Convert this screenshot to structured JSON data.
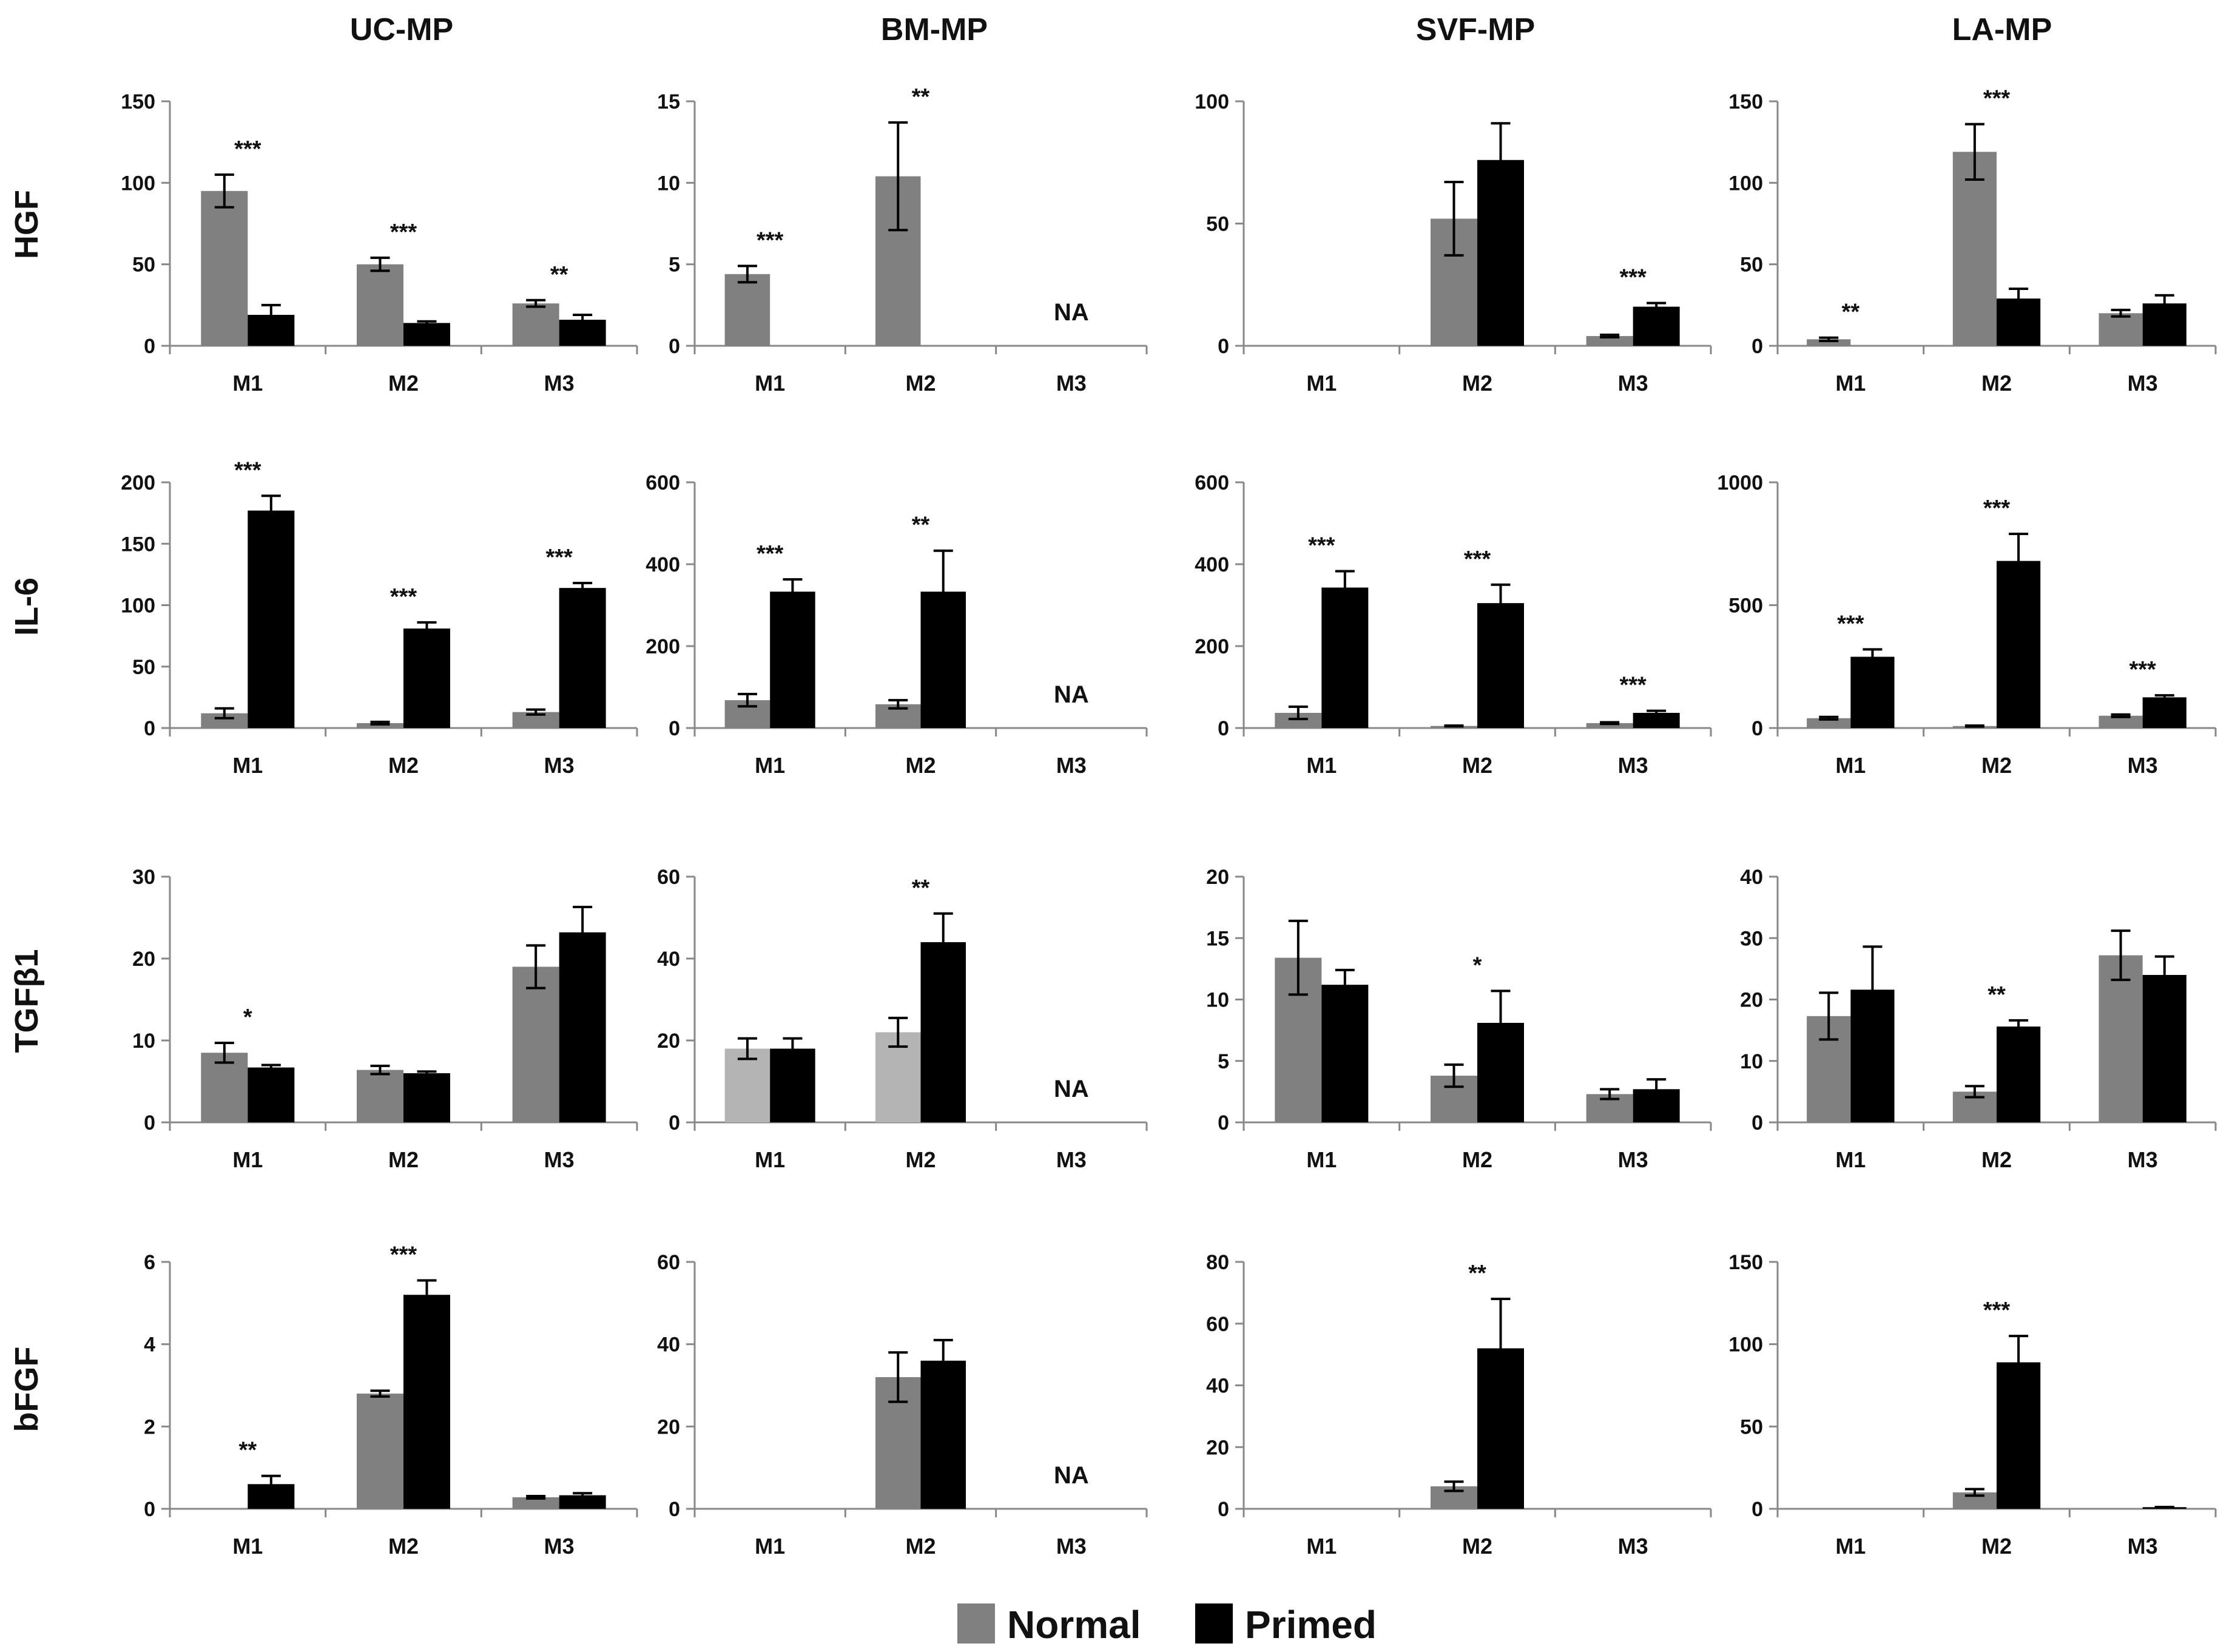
{
  "figure": {
    "columns": [
      "UC-MP",
      "BM-MP",
      "SVF-MP",
      "LA-MP"
    ],
    "rows": [
      "HGF",
      "IL-6",
      "TGFβ1",
      "bFGF"
    ],
    "legend": [
      {
        "label": "Normal",
        "color": "#808080"
      },
      {
        "label": "Primed",
        "color": "#000000"
      }
    ]
  },
  "chart_data": [
    {
      "type": "bar",
      "row": "HGF",
      "column": "UC-MP",
      "categories": [
        "M1",
        "M2",
        "M3"
      ],
      "ylim": [
        0,
        150
      ],
      "yticks": [
        0,
        50,
        100,
        150
      ],
      "series": [
        {
          "name": "Normal",
          "values": [
            95,
            50,
            26
          ],
          "errors": [
            10,
            4,
            2
          ]
        },
        {
          "name": "Primed",
          "values": [
            19,
            14,
            16
          ],
          "errors": [
            6,
            1,
            3
          ]
        }
      ],
      "significance": [
        "***",
        "***",
        "**"
      ],
      "na": null
    },
    {
      "type": "bar",
      "row": "HGF",
      "column": "BM-MP",
      "categories": [
        "M1",
        "M2",
        "M3"
      ],
      "ylim": [
        0,
        15
      ],
      "yticks": [
        0,
        5,
        10,
        15
      ],
      "series": [
        {
          "name": "Normal",
          "values": [
            4.4,
            10.4,
            null
          ],
          "errors": [
            0.5,
            3.3,
            null
          ]
        },
        {
          "name": "Primed",
          "values": [
            null,
            null,
            null
          ],
          "errors": [
            null,
            null,
            null
          ]
        }
      ],
      "significance": [
        "***",
        "**",
        ""
      ],
      "na": "NA"
    },
    {
      "type": "bar",
      "row": "HGF",
      "column": "SVF-MP",
      "categories": [
        "M1",
        "M2",
        "M3"
      ],
      "ylim": [
        0,
        100
      ],
      "yticks": [
        0,
        50,
        100
      ],
      "series": [
        {
          "name": "Normal",
          "values": [
            null,
            52,
            4
          ],
          "errors": [
            null,
            15,
            0.5
          ]
        },
        {
          "name": "Primed",
          "values": [
            null,
            76,
            16
          ],
          "errors": [
            null,
            15,
            1.5
          ]
        }
      ],
      "significance": [
        "",
        "",
        "***"
      ],
      "na": null
    },
    {
      "type": "bar",
      "row": "HGF",
      "column": "LA-MP",
      "categories": [
        "M1",
        "M2",
        "M3"
      ],
      "ylim": [
        0,
        150
      ],
      "yticks": [
        0,
        50,
        100,
        150
      ],
      "series": [
        {
          "name": "Normal",
          "values": [
            4,
            119,
            20
          ],
          "errors": [
            1,
            17,
            2
          ]
        },
        {
          "name": "Primed",
          "values": [
            null,
            29,
            26
          ],
          "errors": [
            null,
            6,
            5
          ]
        }
      ],
      "significance": [
        "**",
        "***",
        ""
      ],
      "na": null
    },
    {
      "type": "bar",
      "row": "IL-6",
      "column": "UC-MP",
      "categories": [
        "M1",
        "M2",
        "M3"
      ],
      "ylim": [
        0,
        200
      ],
      "yticks": [
        0,
        50,
        100,
        150,
        200
      ],
      "series": [
        {
          "name": "Normal",
          "values": [
            12,
            4,
            13
          ],
          "errors": [
            4,
            1,
            2
          ]
        },
        {
          "name": "Primed",
          "values": [
            177,
            81,
            114
          ],
          "errors": [
            12,
            5,
            4
          ]
        }
      ],
      "significance": [
        "***",
        "***",
        "***"
      ],
      "na": null
    },
    {
      "type": "bar",
      "row": "IL-6",
      "column": "BM-MP",
      "categories": [
        "M1",
        "M2",
        "M3"
      ],
      "ylim": [
        0,
        600
      ],
      "yticks": [
        0,
        200,
        400,
        600
      ],
      "series": [
        {
          "name": "Normal",
          "values": [
            68,
            58,
            null
          ],
          "errors": [
            15,
            10,
            null
          ]
        },
        {
          "name": "Primed",
          "values": [
            333,
            333,
            null
          ],
          "errors": [
            30,
            100,
            null
          ]
        }
      ],
      "significance": [
        "***",
        "**",
        ""
      ],
      "na": "NA"
    },
    {
      "type": "bar",
      "row": "IL-6",
      "column": "SVF-MP",
      "categories": [
        "M1",
        "M2",
        "M3"
      ],
      "ylim": [
        0,
        600
      ],
      "yticks": [
        0,
        200,
        400,
        600
      ],
      "series": [
        {
          "name": "Normal",
          "values": [
            37,
            5,
            12
          ],
          "errors": [
            15,
            1,
            2
          ]
        },
        {
          "name": "Primed",
          "values": [
            343,
            305,
            37
          ],
          "errors": [
            40,
            45,
            5
          ]
        }
      ],
      "significance": [
        "***",
        "***",
        "***"
      ],
      "na": null
    },
    {
      "type": "bar",
      "row": "IL-6",
      "column": "LA-MP",
      "categories": [
        "M1",
        "M2",
        "M3"
      ],
      "ylim": [
        0,
        1000
      ],
      "yticks": [
        0,
        500,
        1000
      ],
      "series": [
        {
          "name": "Normal",
          "values": [
            40,
            8,
            50
          ],
          "errors": [
            5,
            2,
            5
          ]
        },
        {
          "name": "Primed",
          "values": [
            290,
            680,
            125
          ],
          "errors": [
            30,
            110,
            8
          ]
        }
      ],
      "significance": [
        "***",
        "***",
        "***"
      ],
      "na": null
    },
    {
      "type": "bar",
      "row": "TGFβ1",
      "column": "UC-MP",
      "categories": [
        "M1",
        "M2",
        "M3"
      ],
      "ylim": [
        0,
        30
      ],
      "yticks": [
        0,
        10,
        20,
        30
      ],
      "series": [
        {
          "name": "Normal",
          "values": [
            8.5,
            6.4,
            19
          ],
          "errors": [
            1.2,
            0.5,
            2.6
          ]
        },
        {
          "name": "Primed",
          "values": [
            6.7,
            6,
            23.2
          ],
          "errors": [
            0.3,
            0.2,
            3.1
          ]
        }
      ],
      "significance": [
        "*",
        "",
        ""
      ],
      "na": null
    },
    {
      "type": "bar",
      "row": "TGFβ1",
      "column": "BM-MP",
      "categories": [
        "M1",
        "M2",
        "M3"
      ],
      "ylim": [
        0,
        60
      ],
      "yticks": [
        0,
        20,
        40,
        60
      ],
      "series": [
        {
          "name": "Normal",
          "values": [
            18,
            22,
            null
          ],
          "errors": [
            2.5,
            3.5,
            null
          ]
        },
        {
          "name": "Primed",
          "values": [
            18,
            44,
            null
          ],
          "errors": [
            2.5,
            7,
            null
          ]
        }
      ],
      "significance": [
        "",
        "**",
        ""
      ],
      "na": "NA"
    },
    {
      "type": "bar",
      "row": "TGFβ1",
      "column": "SVF-MP",
      "categories": [
        "M1",
        "M2",
        "M3"
      ],
      "ylim": [
        0,
        20
      ],
      "yticks": [
        0,
        5,
        10,
        15,
        20
      ],
      "series": [
        {
          "name": "Normal",
          "values": [
            13.4,
            3.8,
            2.3
          ],
          "errors": [
            3,
            0.9,
            0.4
          ]
        },
        {
          "name": "Primed",
          "values": [
            11.2,
            8.1,
            2.7
          ],
          "errors": [
            1.2,
            2.6,
            0.8
          ]
        }
      ],
      "significance": [
        "",
        "*",
        ""
      ],
      "na": null
    },
    {
      "type": "bar",
      "row": "TGFβ1",
      "column": "LA-MP",
      "categories": [
        "M1",
        "M2",
        "M3"
      ],
      "ylim": [
        0,
        40
      ],
      "yticks": [
        0,
        10,
        20,
        30,
        40
      ],
      "series": [
        {
          "name": "Normal",
          "values": [
            17.3,
            5,
            27.2
          ],
          "errors": [
            3.8,
            0.9,
            4
          ]
        },
        {
          "name": "Primed",
          "values": [
            21.6,
            15.6,
            24
          ],
          "errors": [
            7,
            1,
            3
          ]
        }
      ],
      "significance": [
        "",
        "**",
        ""
      ],
      "na": null
    },
    {
      "type": "bar",
      "row": "bFGF",
      "column": "UC-MP",
      "categories": [
        "M1",
        "M2",
        "M3"
      ],
      "ylim": [
        0,
        6
      ],
      "yticks": [
        0,
        2,
        4,
        6
      ],
      "series": [
        {
          "name": "Normal",
          "values": [
            null,
            2.8,
            0.28
          ],
          "errors": [
            null,
            0.07,
            0.03
          ]
        },
        {
          "name": "Primed",
          "values": [
            0.6,
            5.2,
            0.33
          ],
          "errors": [
            0.2,
            0.35,
            0.05
          ]
        }
      ],
      "significance": [
        "**",
        "***",
        ""
      ],
      "na": null
    },
    {
      "type": "bar",
      "row": "bFGF",
      "column": "BM-MP",
      "categories": [
        "M1",
        "M2",
        "M3"
      ],
      "ylim": [
        0,
        60
      ],
      "yticks": [
        0,
        20,
        40,
        60
      ],
      "series": [
        {
          "name": "Normal",
          "values": [
            null,
            32,
            null
          ],
          "errors": [
            null,
            6,
            null
          ]
        },
        {
          "name": "Primed",
          "values": [
            null,
            36,
            null
          ],
          "errors": [
            null,
            5,
            null
          ]
        }
      ],
      "significance": [
        "",
        "",
        ""
      ],
      "na": "NA"
    },
    {
      "type": "bar",
      "row": "bFGF",
      "column": "SVF-MP",
      "categories": [
        "M1",
        "M2",
        "M3"
      ],
      "ylim": [
        0,
        80
      ],
      "yticks": [
        0,
        20,
        40,
        60,
        80
      ],
      "series": [
        {
          "name": "Normal",
          "values": [
            null,
            7.3,
            null
          ],
          "errors": [
            null,
            1.5,
            null
          ]
        },
        {
          "name": "Primed",
          "values": [
            null,
            52,
            null
          ],
          "errors": [
            null,
            16,
            null
          ]
        }
      ],
      "significance": [
        "",
        "**",
        ""
      ],
      "na": null
    },
    {
      "type": "bar",
      "row": "bFGF",
      "column": "LA-MP",
      "categories": [
        "M1",
        "M2",
        "M3"
      ],
      "ylim": [
        0,
        150
      ],
      "yticks": [
        0,
        50,
        100,
        150
      ],
      "series": [
        {
          "name": "Normal",
          "values": [
            null,
            10,
            null
          ],
          "errors": [
            null,
            2,
            null
          ]
        },
        {
          "name": "Primed",
          "values": [
            null,
            89,
            1
          ],
          "errors": [
            null,
            16,
            0.1
          ]
        }
      ],
      "significance": [
        "",
        "***",
        ""
      ],
      "na": null
    }
  ]
}
